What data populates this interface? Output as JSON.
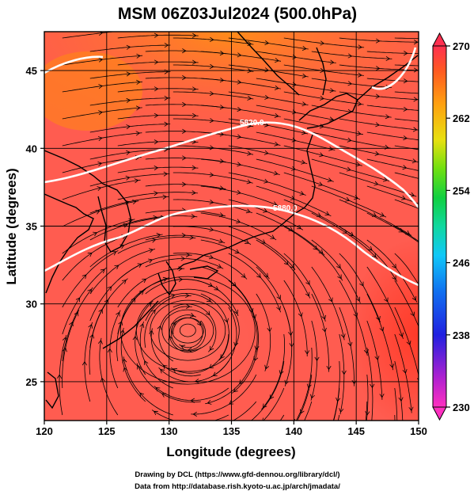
{
  "title": "MSM 06Z03Jul2024 (500.0hPa)",
  "xlabel": "Longitude (degrees)",
  "ylabel": "Latitude (degrees)",
  "x_ticks": [
    "120",
    "125",
    "130",
    "135",
    "140",
    "145",
    "150"
  ],
  "y_ticks": [
    "25",
    "30",
    "35",
    "40",
    "45"
  ],
  "colorbar": {
    "min": 230,
    "max": 270,
    "ticks": [
      "270",
      "262",
      "254",
      "246",
      "238",
      "230"
    ],
    "colors": [
      "#ff2fb8",
      "#c020c8",
      "#5a1ad8",
      "#1030e0",
      "#1070f0",
      "#10c0ff",
      "#10d8a8",
      "#10d040",
      "#30e010",
      "#a8e010",
      "#f0e010",
      "#ffc010",
      "#ff8a10",
      "#ff5a20",
      "#ff3050"
    ]
  },
  "contour_labels": [
    "5880.0",
    "5820.0"
  ],
  "credits": [
    "Drawing by DCL (https://www.gfd-dennou.org/library/dcl/)",
    "Data from http://database.rish.kyoto-u.ac.jp/arch/jmadata/"
  ],
  "map": {
    "lon_range": [
      120,
      150
    ],
    "lat_range": [
      22.5,
      47.5
    ],
    "field": "temperature (K) shaded, geopotential height contours, wind streamlines",
    "typhoon_center_lon": 131.5,
    "typhoon_center_lat": 28.3
  },
  "colors": {
    "background_field": "#ff5a4a",
    "warm_field": "#ff7a2a",
    "contour": "#ffffff",
    "coast": "#000000"
  }
}
